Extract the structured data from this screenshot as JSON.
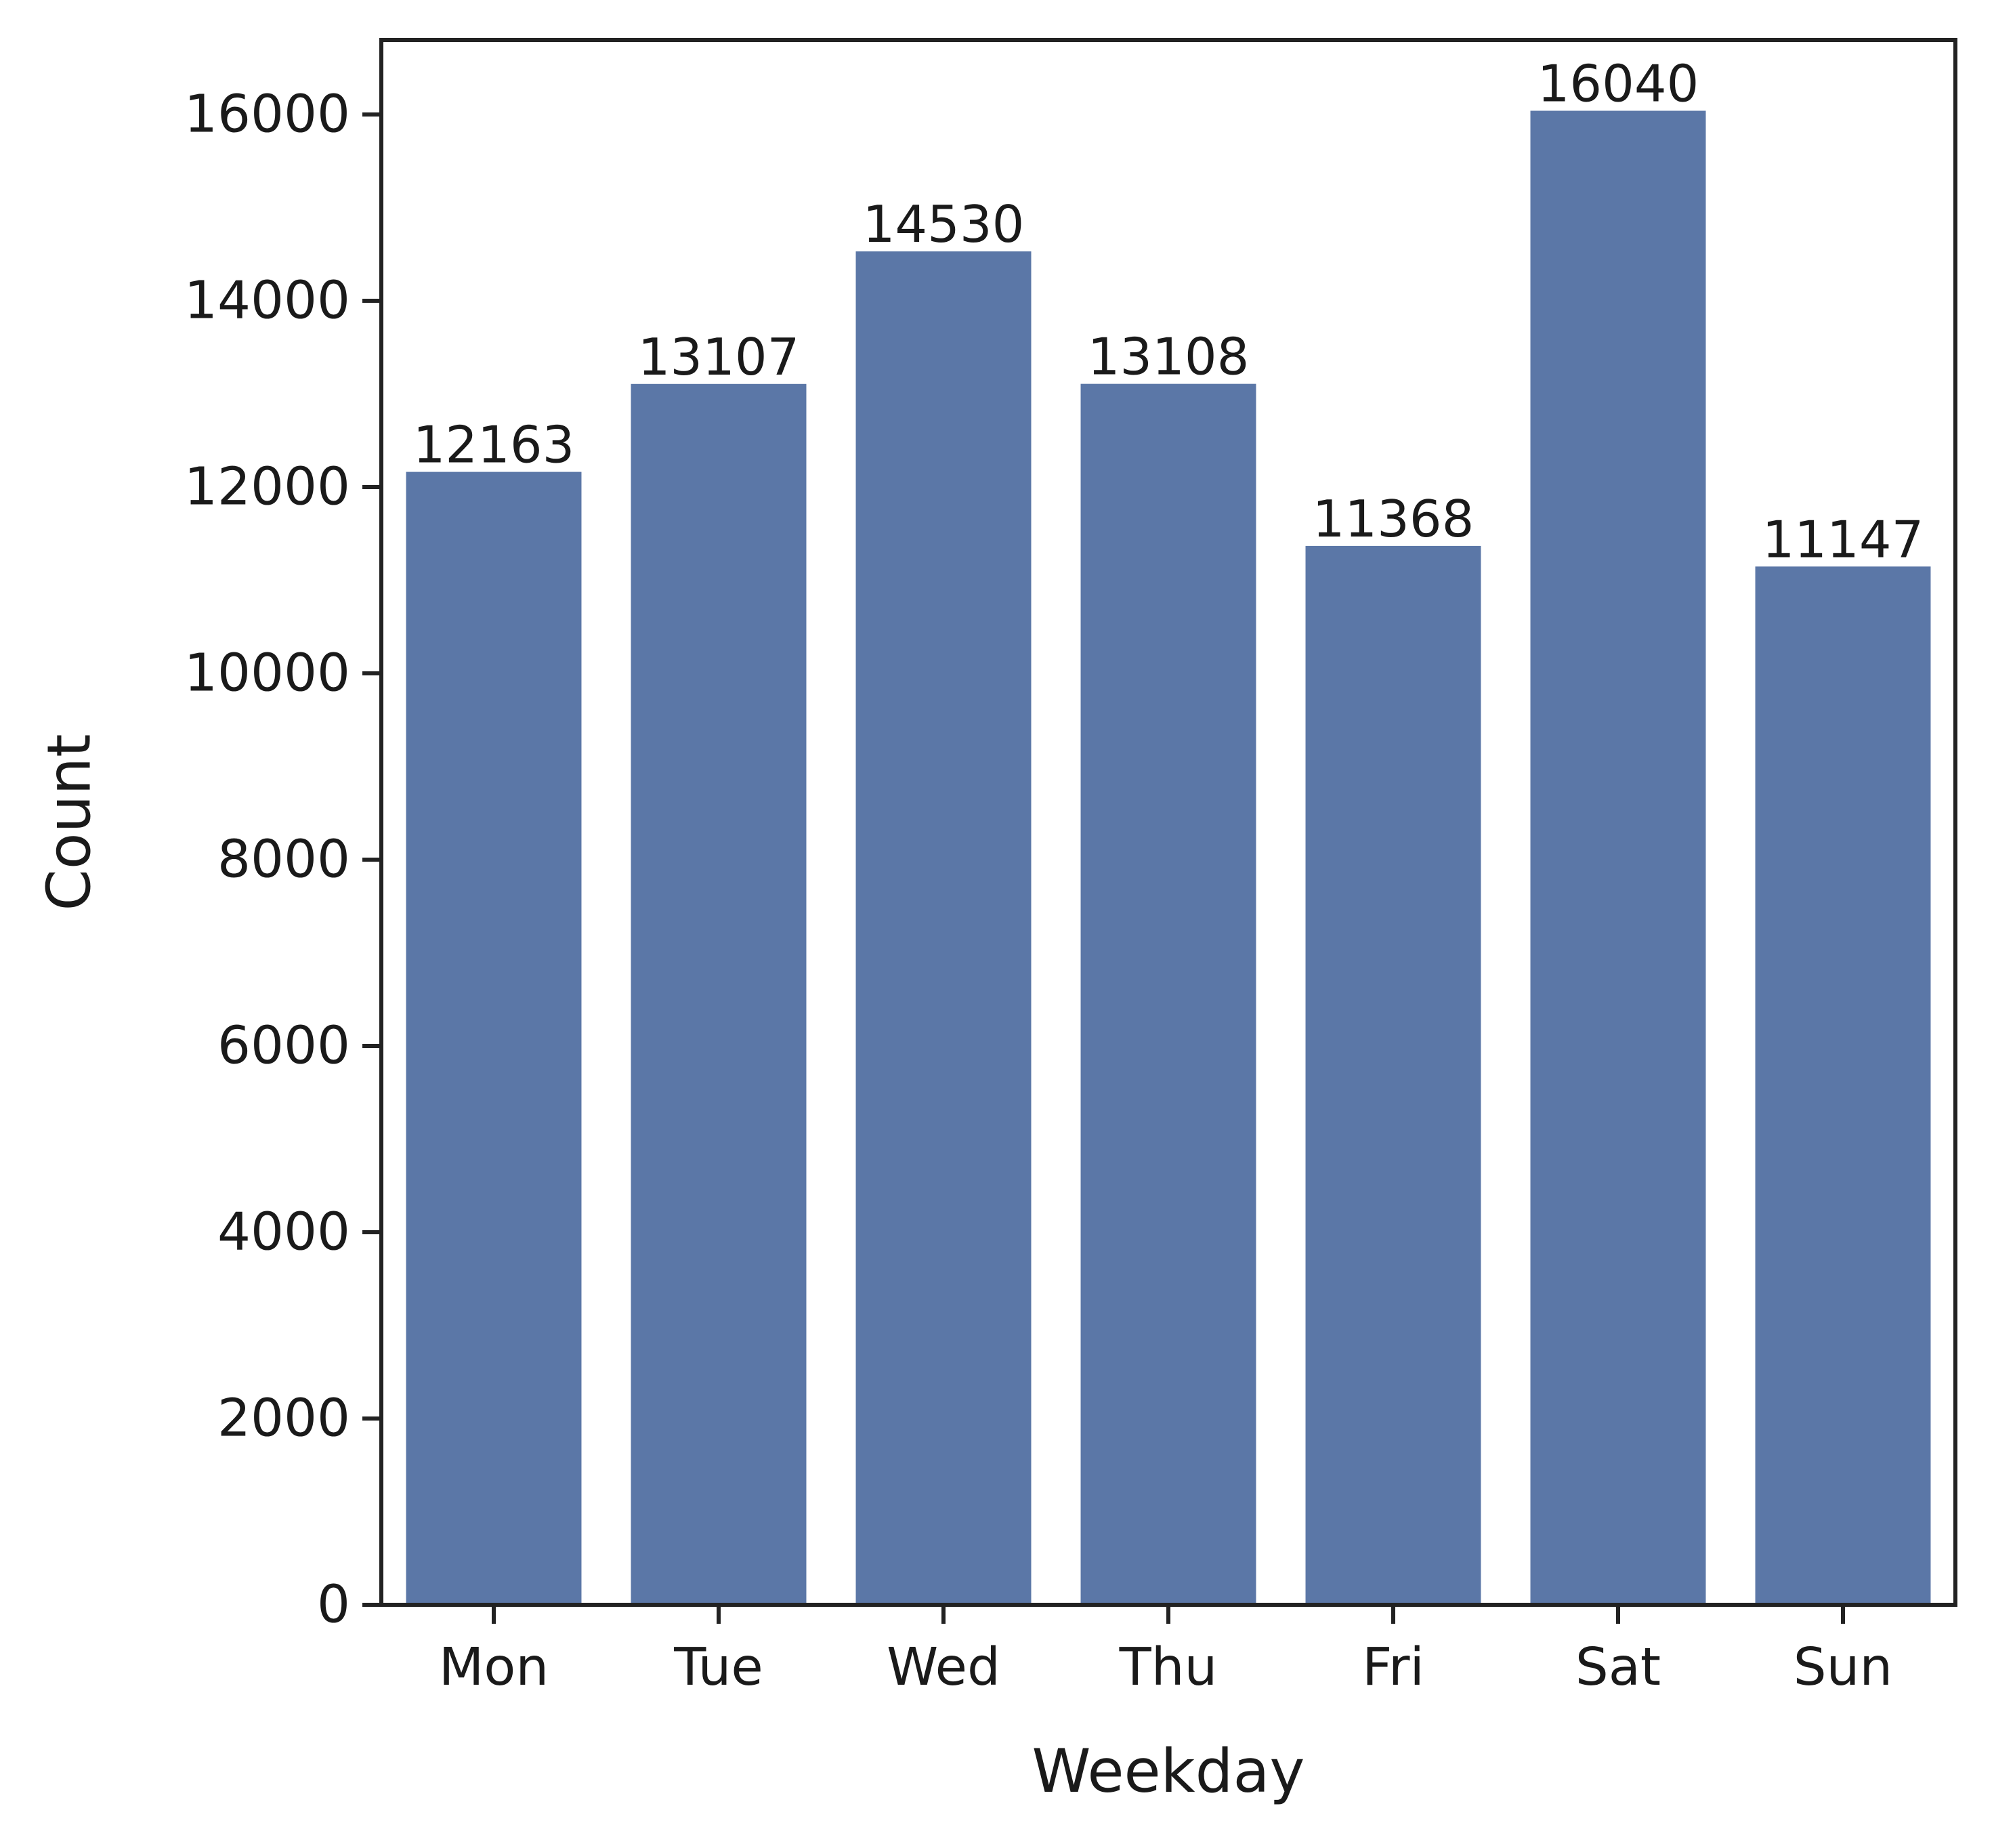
{
  "chart_data": {
    "type": "bar",
    "title": "",
    "xlabel": "Weekday",
    "ylabel": "Count",
    "categories": [
      "Mon",
      "Tue",
      "Wed",
      "Thu",
      "Fri",
      "Sat",
      "Sun"
    ],
    "values": [
      12163,
      13107,
      14530,
      13108,
      11368,
      16040,
      11147
    ],
    "data_labels": [
      "12163",
      "13107",
      "14530",
      "13108",
      "11368",
      "16040",
      "11147"
    ],
    "ylim": [
      0,
      16800
    ],
    "yticks": [
      0,
      2000,
      4000,
      6000,
      8000,
      10000,
      12000,
      14000,
      16000
    ],
    "ytick_labels": [
      "0",
      "2000",
      "4000",
      "6000",
      "8000",
      "10000",
      "12000",
      "14000",
      "16000"
    ],
    "grid": false,
    "bar_color": "#5b77a7",
    "axis_color": "#222222"
  }
}
